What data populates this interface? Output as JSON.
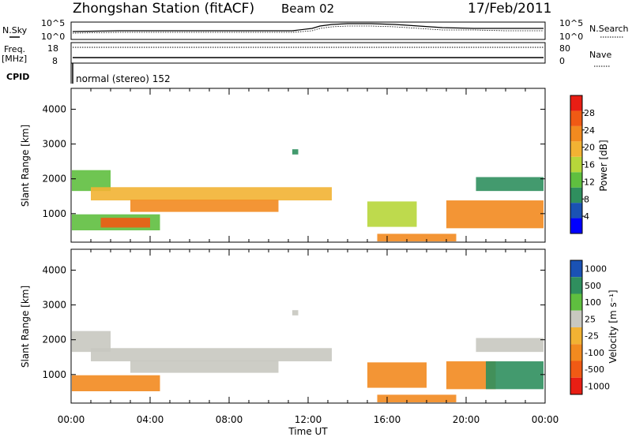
{
  "header": {
    "title": "Zhongshan Station (fitACF)",
    "beam": "Beam 02",
    "date": "17/Feb/2011"
  },
  "status_panel": {
    "nsky_label": "N.Sky",
    "nsearch_label": "N.Search",
    "freq_label_1": "Freq.",
    "freq_label_2": "[MHz]",
    "nave_label": "Nave",
    "cpid_label": "CPID",
    "nsky_ticks": [
      "10^5",
      "10^0"
    ],
    "nsearch_ticks": [
      "10^5",
      "10^0"
    ],
    "freq_ticks": [
      "18",
      "8"
    ],
    "nave_ticks": [
      "80",
      "0"
    ],
    "mode_text": "normal (stereo) 152"
  },
  "colors": {
    "power_scale": [
      "#0000ff",
      "#1a52b4",
      "#2f8f5e",
      "#5fbf3f",
      "#b7d63a",
      "#f2b233",
      "#f28a1f",
      "#f05a14",
      "#e81e14"
    ],
    "velocity_scale": [
      "#1a52b4",
      "#2f8f5e",
      "#5fbf3f",
      "#c8c8c0",
      "#f2b233",
      "#f28a1f",
      "#f05a14",
      "#e81e14"
    ]
  },
  "chart_data": [
    {
      "type": "heatmap",
      "name": "power",
      "xlabel": "",
      "ylabel": "Slant Range [km]",
      "x_ticks": [
        "00:00",
        "04:00",
        "08:00",
        "12:00",
        "16:00",
        "20:00",
        "00:00"
      ],
      "x_range_hours": [
        0,
        24
      ],
      "y_ticks": [
        1000,
        2000,
        3000,
        4000
      ],
      "ylim": [
        180,
        4600
      ],
      "colorbar_label": "Power [dB]",
      "colorbar_ticks": [
        4,
        8,
        12,
        16,
        20,
        24,
        28
      ],
      "colorbar_range": [
        0,
        32
      ],
      "bands": [
        {
          "t0": 0.0,
          "t1": 2.0,
          "r0": 1650,
          "r1": 2250,
          "level": 12
        },
        {
          "t0": 1.0,
          "t1": 13.2,
          "r0": 1380,
          "r1": 1760,
          "level": 18
        },
        {
          "t0": 3.0,
          "t1": 10.5,
          "r0": 1050,
          "r1": 1400,
          "level": 22
        },
        {
          "t0": 0.0,
          "t1": 4.5,
          "r0": 520,
          "r1": 980,
          "level": 14
        },
        {
          "t0": 1.5,
          "t1": 4.0,
          "r0": 600,
          "r1": 880,
          "level": 26
        },
        {
          "t0": 11.2,
          "t1": 11.5,
          "r0": 2700,
          "r1": 2850,
          "level": 8
        },
        {
          "t0": 15.0,
          "t1": 17.5,
          "r0": 620,
          "r1": 1350,
          "level": 16
        },
        {
          "t0": 15.5,
          "t1": 19.5,
          "r0": 200,
          "r1": 420,
          "level": 24
        },
        {
          "t0": 19.0,
          "t1": 24.0,
          "r0": 580,
          "r1": 1380,
          "level": 22
        },
        {
          "t0": 20.5,
          "t1": 24.0,
          "r0": 1650,
          "r1": 2050,
          "level": 10
        }
      ]
    },
    {
      "type": "heatmap",
      "name": "velocity",
      "xlabel": "Time UT",
      "ylabel": "Slant Range [km]",
      "x_ticks": [
        "00:00",
        "04:00",
        "08:00",
        "12:00",
        "16:00",
        "20:00",
        "00:00"
      ],
      "x_range_hours": [
        0,
        24
      ],
      "y_ticks": [
        1000,
        2000,
        3000,
        4000
      ],
      "ylim": [
        180,
        4600
      ],
      "colorbar_label": "Velocity [m s⁻¹]",
      "colorbar_ticks": [
        "1000",
        "500",
        "100",
        "25",
        "-25",
        "-100",
        "-500",
        "-1000"
      ],
      "bands": [
        {
          "t0": 0.0,
          "t1": 2.0,
          "r0": 1650,
          "r1": 2250,
          "level": 0
        },
        {
          "t0": 1.0,
          "t1": 13.2,
          "r0": 1380,
          "r1": 1760,
          "level": 0
        },
        {
          "t0": 3.0,
          "t1": 10.5,
          "r0": 1050,
          "r1": 1400,
          "level": 0
        },
        {
          "t0": 0.0,
          "t1": 4.5,
          "r0": 520,
          "r1": 980,
          "level": -100
        },
        {
          "t0": 11.2,
          "t1": 11.5,
          "r0": 2700,
          "r1": 2850,
          "level": 0
        },
        {
          "t0": 15.0,
          "t1": 18.0,
          "r0": 620,
          "r1": 1350,
          "level": -200
        },
        {
          "t0": 15.5,
          "t1": 19.5,
          "r0": 200,
          "r1": 420,
          "level": -100
        },
        {
          "t0": 19.0,
          "t1": 21.5,
          "r0": 580,
          "r1": 1380,
          "level": -100
        },
        {
          "t0": 21.0,
          "t1": 24.0,
          "r0": 580,
          "r1": 1380,
          "level": 150
        },
        {
          "t0": 20.5,
          "t1": 24.0,
          "r0": 1650,
          "r1": 2050,
          "level": 0
        }
      ]
    }
  ]
}
